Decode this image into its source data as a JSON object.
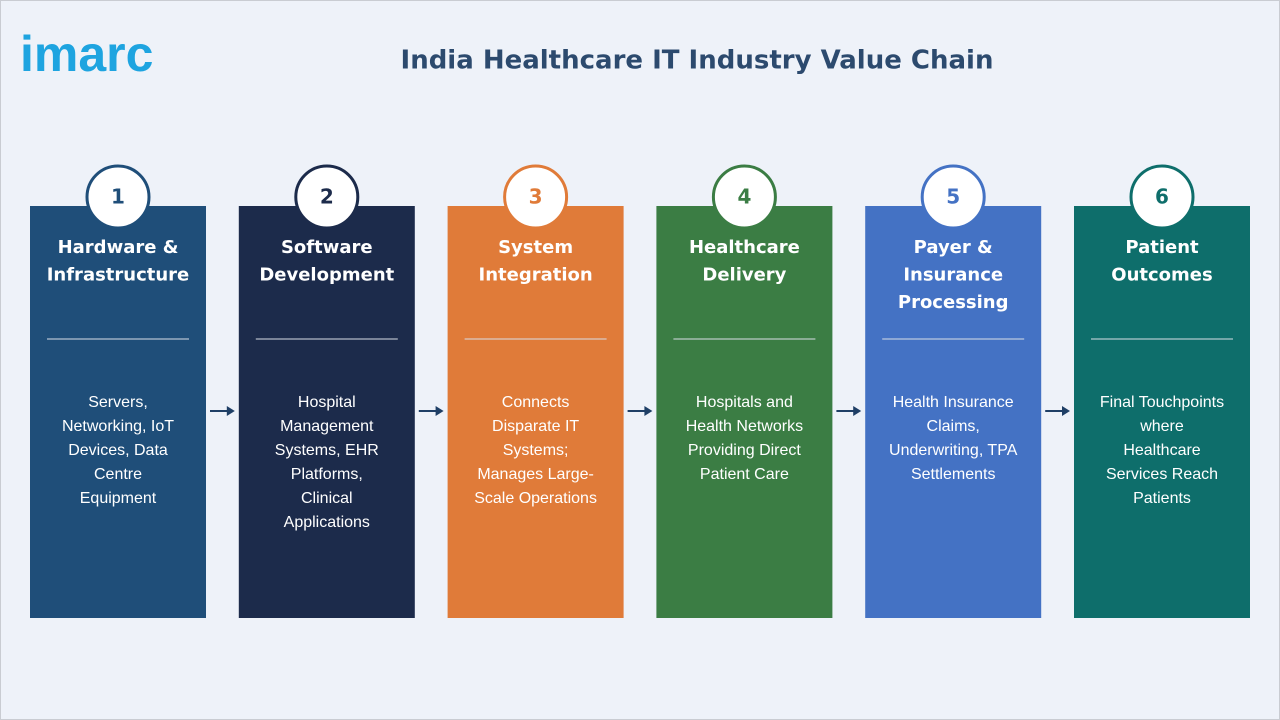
{
  "header": {
    "logo": "imarc",
    "title": "India Healthcare IT Industry Value Chain"
  },
  "stages": [
    {
      "number": 1,
      "color": "#1f4e79",
      "title": [
        "Hardware &",
        "Infrastructure"
      ],
      "description": [
        "Servers,",
        "Networking, IoT",
        "Devices, Data",
        "Centre",
        "Equipment"
      ]
    },
    {
      "number": 2,
      "color": "#1c2b4b",
      "title": [
        "Software",
        "Development"
      ],
      "description": [
        "Hospital",
        "Management",
        "Systems, EHR",
        "Platforms,",
        "Clinical",
        "Applications"
      ]
    },
    {
      "number": 3,
      "color": "#e07b39",
      "title": [
        "System",
        "Integration"
      ],
      "description": [
        "Connects",
        "Disparate IT",
        "Systems;",
        "Manages Large-",
        "Scale Operations"
      ]
    },
    {
      "number": 4,
      "color": "#3b7d44",
      "title": [
        "Healthcare",
        "Delivery"
      ],
      "description": [
        "Hospitals and",
        "Health Networks",
        "Providing Direct",
        "Patient Care"
      ]
    },
    {
      "number": 5,
      "color": "#4472c4",
      "title": [
        "Payer &",
        "Insurance",
        "Processing"
      ],
      "description": [
        "Health Insurance",
        "Claims,",
        "Underwriting, TPA",
        "Settlements"
      ]
    },
    {
      "number": 6,
      "color": "#0e6e6b",
      "title": [
        "Patient",
        "Outcomes"
      ],
      "description": [
        "Final Touchpoints",
        "where",
        "Healthcare",
        "Services Reach",
        "Patients"
      ]
    }
  ]
}
